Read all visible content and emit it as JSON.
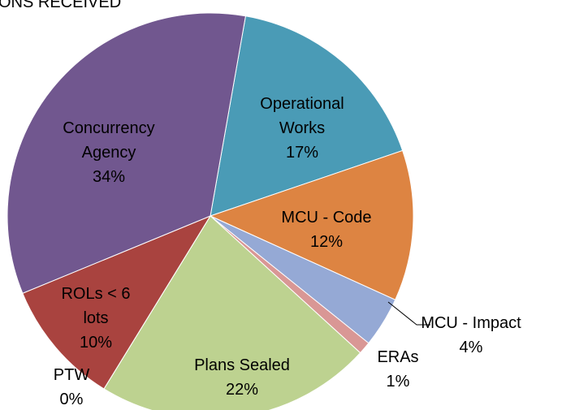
{
  "chart_data": {
    "type": "pie",
    "title": "ONS RECEIVED",
    "categories": [
      "Operational Works",
      "MCU - Code",
      "MCU - Impact",
      "ERAs",
      "Plans Sealed",
      "PTW",
      "ROLs < 6 lots",
      "Concurrency Agency"
    ],
    "values": [
      17,
      12,
      4,
      1,
      22,
      0,
      10,
      34
    ],
    "value_labels": [
      "17%",
      "12%",
      "4%",
      "1%",
      "22%",
      "0%",
      "10%",
      "34%"
    ],
    "colors": [
      "#4a9bb6",
      "#dd8442",
      "#95a9d5",
      "#d99795",
      "#bdd290",
      "#9bbb59",
      "#a9433f",
      "#71578f"
    ]
  }
}
